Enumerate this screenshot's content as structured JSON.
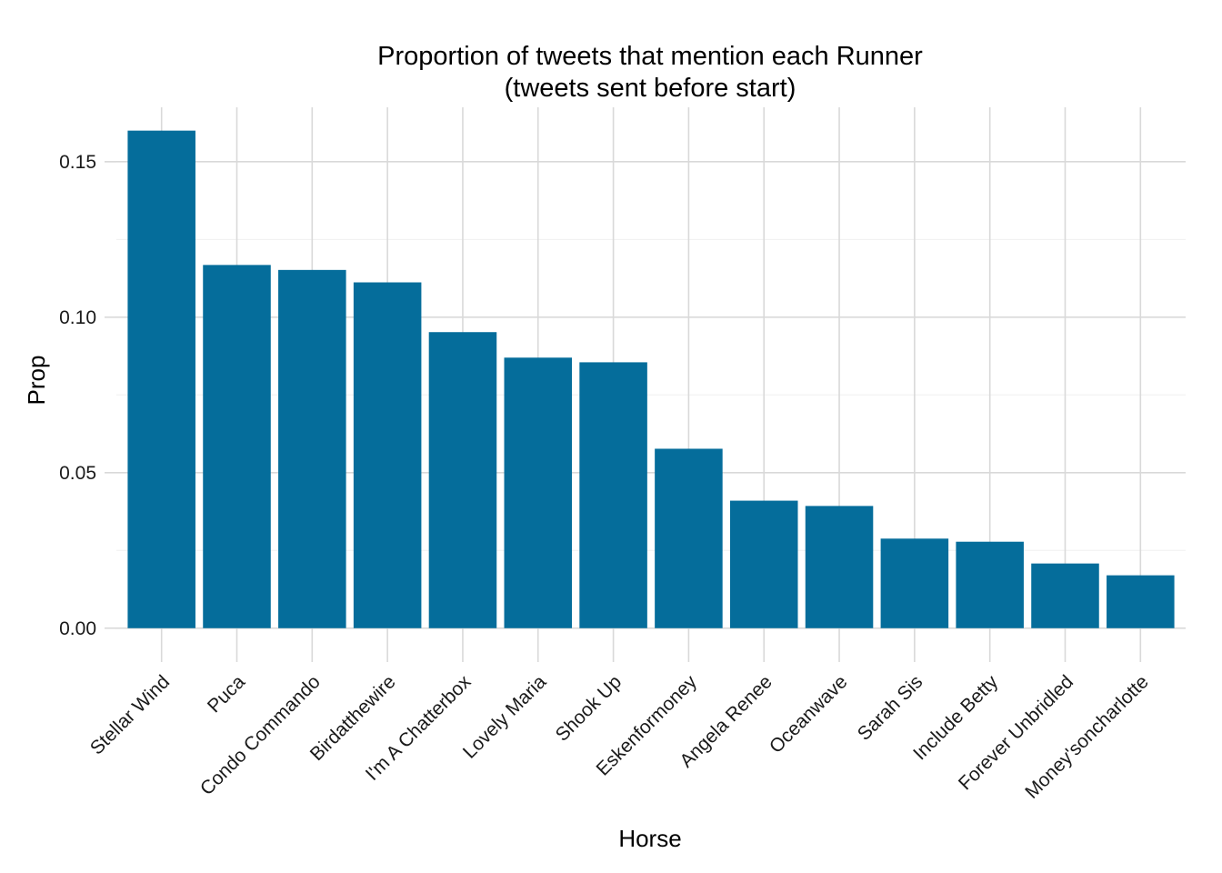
{
  "chart_data": {
    "type": "bar",
    "title": "Proportion of tweets that mention each Runner",
    "subtitle": "(tweets sent before start)",
    "xlabel": "Horse",
    "ylabel": "Prop",
    "categories": [
      "Stellar Wind",
      "Puca",
      "Condo Commando",
      "Birdatthewire",
      "I'm A Chatterbox",
      "Lovely Maria",
      "Shook Up",
      "Eskenformoney",
      "Angela Renee",
      "Oceanwave",
      "Sarah Sis",
      "Include Betty",
      "Forever Unbridled",
      "Money'soncharlotte"
    ],
    "values": [
      0.16,
      0.1168,
      0.1152,
      0.1112,
      0.0952,
      0.087,
      0.0855,
      0.0577,
      0.041,
      0.0393,
      0.0288,
      0.0278,
      0.0208,
      0.017
    ],
    "ylim": [
      -0.0065,
      0.1675
    ],
    "yticks": [
      0.0,
      0.05,
      0.1,
      0.15
    ],
    "ytick_labels": [
      "0.00",
      "0.05",
      "0.10",
      "0.15"
    ],
    "grid": true,
    "bar_color": "#056d9b",
    "legend": "none"
  }
}
